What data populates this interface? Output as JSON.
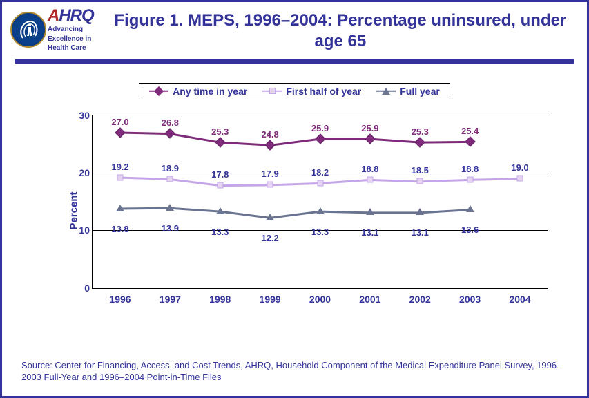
{
  "header": {
    "ahrq_letters": {
      "a": "A",
      "rest": "HRQ"
    },
    "ahrq_tagline_l1": "Advancing",
    "ahrq_tagline_l2": "Excellence in",
    "ahrq_tagline_l3": "Health Care",
    "title": "Figure 1. MEPS, 1996–2004: Percentage uninsured, under age 65"
  },
  "legend": {
    "items": [
      {
        "label": "Any time in year",
        "color": "#7f2a7a",
        "marker": "diamond",
        "marker_fill": "#7f2a7a"
      },
      {
        "label": "First half of year",
        "color": "#c4a6e8",
        "marker": "square",
        "marker_fill": "#e6d5f2"
      },
      {
        "label": "Full year",
        "color": "#6a7490",
        "marker": "triangle",
        "marker_fill": "#6a7490"
      }
    ],
    "border_color": "#000000",
    "font_color": "#333399"
  },
  "chart": {
    "type": "line",
    "ylabel": "Percent",
    "ylim": [
      0,
      30
    ],
    "ytick_step": 10,
    "yticks": [
      0,
      10,
      20,
      30
    ],
    "categories": [
      "1996",
      "1997",
      "1998",
      "1999",
      "2000",
      "2001",
      "2002",
      "2003",
      "2004"
    ],
    "grid_color": "#000000",
    "background_color": "#ffffff",
    "axis_label_color": "#333399",
    "axis_label_fontsize": 14,
    "line_width": 3,
    "series": [
      {
        "name": "Any time in year",
        "color": "#7f2a7a",
        "marker": "diamond",
        "marker_fill": "#7f2a7a",
        "label_color": "#7f2a7a",
        "label_offset_y": -8,
        "values": [
          27.0,
          26.8,
          25.3,
          24.8,
          25.9,
          25.9,
          25.3,
          25.4,
          null
        ],
        "labels": [
          "27.0",
          "26.8",
          "25.3",
          "24.8",
          "25.9",
          "25.9",
          "25.3",
          "25.4",
          null
        ]
      },
      {
        "name": "First half of year",
        "color": "#c4a6e8",
        "marker": "square",
        "marker_fill": "#e6d5f2",
        "label_color": "#333399",
        "label_offset_y": -8,
        "values": [
          19.2,
          18.9,
          17.8,
          17.9,
          18.2,
          18.8,
          18.5,
          18.8,
          19.0
        ],
        "labels": [
          "19.2",
          "18.9",
          "17.8",
          "17.9",
          "18.2",
          "18.8",
          "18.5",
          "18.8",
          "19.0"
        ]
      },
      {
        "name": "Full year",
        "color": "#6a7490",
        "marker": "triangle",
        "marker_fill": "#6a7490",
        "label_color": "#333399",
        "label_offset_y": 22,
        "values": [
          13.8,
          13.9,
          13.3,
          12.2,
          13.3,
          13.1,
          13.1,
          13.6,
          null
        ],
        "labels": [
          "13.8",
          "13.9",
          "13.3",
          "12.2",
          "13.3",
          "13.1",
          "13.1",
          "13.6",
          null
        ]
      }
    ]
  },
  "source": "Source: Center for Financing, Access, and Cost Trends, AHRQ, Household Component of the Medical Expenditure Panel Survey, 1996–2003 Full-Year and 1996–2004 Point-in-Time Files"
}
